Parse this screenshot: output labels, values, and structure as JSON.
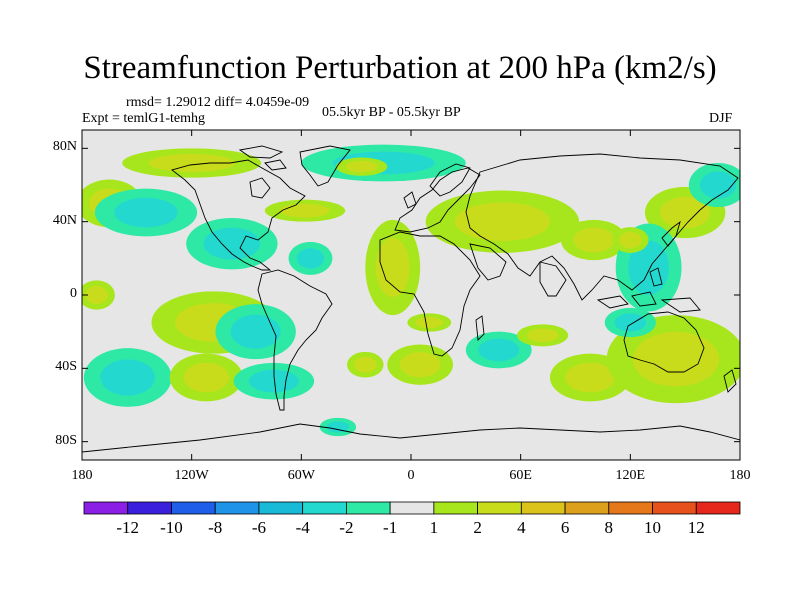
{
  "title": "Streamfunction Perturbation at 200 hPa (km2/s)",
  "stats_text": "rmsd= 1.29012 diff= 4.0459e-09",
  "experiment_text": "Expt = temlG1-temhg",
  "period_text": "05.5kyr BP - 05.5kyr BP",
  "season_text": "DJF",
  "map": {
    "lon_range": [
      -180,
      180
    ],
    "lat_range": [
      -90,
      90
    ],
    "lat_ticks": [
      {
        "value": 80,
        "label": "80N"
      },
      {
        "value": 40,
        "label": "40N"
      },
      {
        "value": 0,
        "label": "0"
      },
      {
        "value": -40,
        "label": "40S"
      },
      {
        "value": -80,
        "label": "80S"
      }
    ],
    "lon_ticks": [
      {
        "value": -180,
        "label": "180"
      },
      {
        "value": -120,
        "label": "120W"
      },
      {
        "value": -60,
        "label": "60W"
      },
      {
        "value": 0,
        "label": "0"
      },
      {
        "value": 60,
        "label": "60E"
      },
      {
        "value": 120,
        "label": "120E"
      },
      {
        "value": 180,
        "label": "180"
      }
    ]
  },
  "colorbar": {
    "colors": [
      "#8b1fe6",
      "#3a1fdc",
      "#1f5ee8",
      "#1f93e8",
      "#19b9d8",
      "#23d9cf",
      "#2ee8a6",
      "#e6e6e6",
      "#a7e61c",
      "#c8dc1c",
      "#dcc31c",
      "#dca01c",
      "#e6781c",
      "#e6511c",
      "#e6281c"
    ],
    "labels": [
      "-12",
      "-10",
      "-8",
      "-6",
      "-4",
      "-2",
      "-1",
      "1",
      "2",
      "4",
      "6",
      "8",
      "10",
      "12"
    ]
  },
  "chart_data": {
    "type": "heatmap",
    "title": "Streamfunction Perturbation at 200 hPa (km2/s)",
    "units": "km2/s",
    "levels": [
      -12,
      -10,
      -8,
      -6,
      -4,
      -2,
      -1,
      1,
      2,
      4,
      6,
      8,
      10,
      12
    ],
    "features": [
      {
        "lon": -120,
        "lat": 72,
        "value": 2.5,
        "rx": 38,
        "ry": 8
      },
      {
        "lon": -165,
        "lat": 50,
        "value": 2,
        "rx": 18,
        "ry": 13
      },
      {
        "lon": -145,
        "lat": 45,
        "value": -2.5,
        "rx": 28,
        "ry": 13
      },
      {
        "lon": -15,
        "lat": 72,
        "value": -3,
        "rx": 45,
        "ry": 10
      },
      {
        "lon": -27,
        "lat": 70,
        "value": 2,
        "rx": 14,
        "ry": 5
      },
      {
        "lon": -58,
        "lat": 46,
        "value": 2,
        "rx": 22,
        "ry": 6
      },
      {
        "lon": -98,
        "lat": 28,
        "value": -2.5,
        "rx": 25,
        "ry": 14
      },
      {
        "lon": -55,
        "lat": 20,
        "value": -2,
        "rx": 12,
        "ry": 9
      },
      {
        "lon": -10,
        "lat": 15,
        "value": 2.5,
        "rx": 15,
        "ry": 26
      },
      {
        "lon": 50,
        "lat": 40,
        "value": 3,
        "rx": 42,
        "ry": 17
      },
      {
        "lon": 100,
        "lat": 30,
        "value": 2,
        "rx": 18,
        "ry": 11
      },
      {
        "lon": 150,
        "lat": 45,
        "value": 2,
        "rx": 22,
        "ry": 14
      },
      {
        "lon": 168,
        "lat": 60,
        "value": -2,
        "rx": 16,
        "ry": 12
      },
      {
        "lon": 130,
        "lat": 15,
        "value": -2.5,
        "rx": 18,
        "ry": 24
      },
      {
        "lon": -172,
        "lat": 0,
        "value": 2,
        "rx": 10,
        "ry": 8
      },
      {
        "lon": -108,
        "lat": -15,
        "value": 2.5,
        "rx": 34,
        "ry": 17
      },
      {
        "lon": -85,
        "lat": -20,
        "value": -2.5,
        "rx": 22,
        "ry": 15
      },
      {
        "lon": -155,
        "lat": -45,
        "value": -3.5,
        "rx": 24,
        "ry": 16
      },
      {
        "lon": -112,
        "lat": -45,
        "value": 2,
        "rx": 20,
        "ry": 13
      },
      {
        "lon": -75,
        "lat": -47,
        "value": -3,
        "rx": 22,
        "ry": 10
      },
      {
        "lon": -40,
        "lat": -72,
        "value": -2,
        "rx": 10,
        "ry": 5
      },
      {
        "lon": -25,
        "lat": -38,
        "value": 2,
        "rx": 10,
        "ry": 7
      },
      {
        "lon": 5,
        "lat": -38,
        "value": 2,
        "rx": 18,
        "ry": 11
      },
      {
        "lon": 10,
        "lat": -15,
        "value": 2,
        "rx": 12,
        "ry": 5
      },
      {
        "lon": 48,
        "lat": -30,
        "value": -2,
        "rx": 18,
        "ry": 10
      },
      {
        "lon": 72,
        "lat": -22,
        "value": 2,
        "rx": 14,
        "ry": 6
      },
      {
        "lon": 98,
        "lat": -45,
        "value": 3,
        "rx": 22,
        "ry": 13
      },
      {
        "lon": 145,
        "lat": -35,
        "value": 3,
        "rx": 38,
        "ry": 24
      },
      {
        "lon": 120,
        "lat": -15,
        "value": -2,
        "rx": 14,
        "ry": 8
      },
      {
        "lon": 120,
        "lat": 30,
        "value": 2,
        "rx": 10,
        "ry": 7
      }
    ]
  }
}
